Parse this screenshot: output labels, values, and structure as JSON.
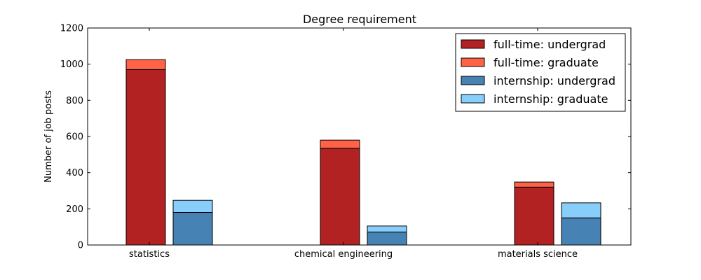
{
  "chart_data": {
    "type": "bar",
    "stacked": true,
    "title": "Degree requirement",
    "xlabel": "",
    "ylabel": "Number of job posts",
    "ylim": [
      0,
      1200
    ],
    "yticks": [
      "0",
      "200",
      "400",
      "600",
      "800",
      "1000",
      "1200"
    ],
    "categories": [
      "statistics",
      "chemical engineering",
      "materials science"
    ],
    "groups": [
      {
        "name": "full-time",
        "layers": [
          {
            "name": "full-time: undergrad",
            "color": "#b22222",
            "values": [
              970,
              535,
              320
            ]
          },
          {
            "name": "full-time: graduate",
            "color": "#ff6347",
            "values": [
              55,
              45,
              28
            ]
          }
        ]
      },
      {
        "name": "internship",
        "layers": [
          {
            "name": "internship: undergrad",
            "color": "#4682b4",
            "values": [
              180,
              72,
              150
            ]
          },
          {
            "name": "internship: graduate",
            "color": "#87cefa",
            "values": [
              67,
              33,
              83
            ]
          }
        ]
      }
    ],
    "legend": {
      "placement": "top-right",
      "entries": [
        "full-time: undergrad",
        "full-time: graduate",
        "internship: undergrad",
        "internship: graduate"
      ]
    },
    "grid": false
  }
}
